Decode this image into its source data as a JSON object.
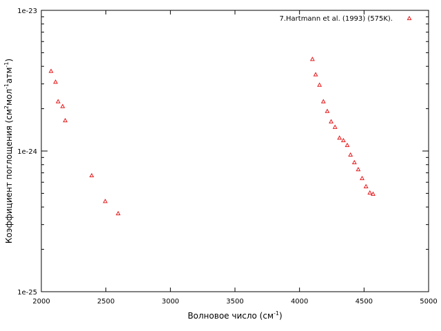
{
  "chart_data": {
    "type": "scatter",
    "title": "",
    "xlabel": "Волновое число (см",
    "xlabel_sup": "-1",
    "xlabel_close": ")",
    "ylabel_parts": [
      "Коэффициент поглощения (см",
      "2",
      "мол",
      "-1",
      "атм",
      "-1",
      ")"
    ],
    "x_range": [
      2000,
      5000
    ],
    "y_range": [
      1e-25,
      1e-23
    ],
    "y_scale": "log",
    "x_ticks": [
      2000,
      2500,
      3000,
      3500,
      4000,
      4500,
      5000
    ],
    "x_tick_labels": [
      "2000",
      "2500",
      "3000",
      "3500",
      "4000",
      "4500",
      "5000"
    ],
    "y_ticks": [
      1e-25,
      1e-24,
      1e-23
    ],
    "y_tick_labels": [
      "1e-25",
      "1e-24",
      "1e-23"
    ],
    "grid": false,
    "legend_position": "top-right",
    "series": [
      {
        "name": "7.Hartmann et al. (1993) (575K).",
        "color": "#e41a1c",
        "marker": "triangle",
        "points": [
          [
            2075,
            3.7e-24
          ],
          [
            2110,
            3.1e-24
          ],
          [
            2130,
            2.25e-24
          ],
          [
            2165,
            2.08e-24
          ],
          [
            2185,
            1.65e-24
          ],
          [
            2390,
            6.7e-25
          ],
          [
            2495,
            4.4e-25
          ],
          [
            2595,
            3.6e-25
          ],
          [
            4100,
            4.5e-24
          ],
          [
            4125,
            3.5e-24
          ],
          [
            4155,
            2.95e-24
          ],
          [
            4185,
            2.25e-24
          ],
          [
            4215,
            1.92e-24
          ],
          [
            4245,
            1.62e-24
          ],
          [
            4275,
            1.48e-24
          ],
          [
            4310,
            1.24e-24
          ],
          [
            4340,
            1.19e-24
          ],
          [
            4370,
            1.1e-24
          ],
          [
            4395,
            9.4e-25
          ],
          [
            4425,
            8.3e-25
          ],
          [
            4455,
            7.4e-25
          ],
          [
            4485,
            6.4e-25
          ],
          [
            4515,
            5.6e-25
          ],
          [
            4545,
            5.05e-25
          ],
          [
            4570,
            4.95e-25
          ]
        ]
      }
    ]
  }
}
